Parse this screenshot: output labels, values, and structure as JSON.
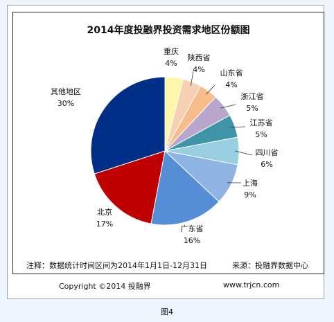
{
  "chart_data": {
    "type": "pie",
    "title": "2014年度投融界投资需求地区份额图",
    "slices": [
      {
        "label": "重庆",
        "value": 4,
        "pct": "4%",
        "color": "#fdf6a9"
      },
      {
        "label": "陕西省",
        "value": 4,
        "pct": "4%",
        "color": "#f7d0b3"
      },
      {
        "label": "山东省",
        "value": 4,
        "pct": "4%",
        "color": "#f8bc8a"
      },
      {
        "label": "浙江省",
        "value": 5,
        "pct": "5%",
        "color": "#b8a6cc"
      },
      {
        "label": "江苏省",
        "value": 5,
        "pct": "5%",
        "color": "#3f95a7"
      },
      {
        "label": "四川省",
        "value": 6,
        "pct": "6%",
        "color": "#97cfe0"
      },
      {
        "label": "上海",
        "value": 9,
        "pct": "9%",
        "color": "#8eb4e3"
      },
      {
        "label": "广东省",
        "value": 16,
        "pct": "16%",
        "color": "#558ed5"
      },
      {
        "label": "北京",
        "value": 17,
        "pct": "17%",
        "color": "#c00000"
      },
      {
        "label": "其他地区",
        "value": 30,
        "pct": "30%",
        "color": "#002f87"
      }
    ]
  },
  "footer": {
    "note": "注释：数据统计时间区间为2014年1月1日-12月31日",
    "source": "来源：投融界数据中心",
    "copyright": "Copyright ©2014 投融界",
    "url": "www.trjcn.com"
  },
  "caption": "图4"
}
